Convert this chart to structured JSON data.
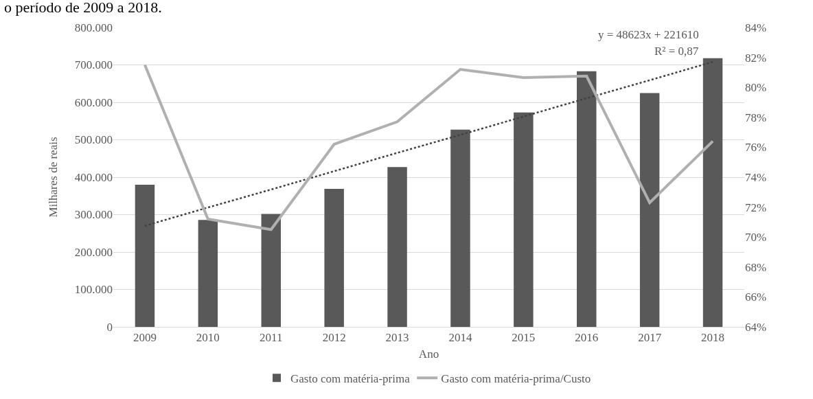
{
  "chart_data": {
    "type": "bar",
    "title": "o período de 2009 a 2018.",
    "xlabel": "Ano",
    "ylabel": "Milhares de reais",
    "categories": [
      "2009",
      "2010",
      "2011",
      "2012",
      "2013",
      "2014",
      "2015",
      "2016",
      "2017",
      "2018"
    ],
    "series": [
      {
        "name": "Gasto com matéria-prima",
        "color": "#595959",
        "values": [
          380000,
          286000,
          302000,
          369000,
          427000,
          527000,
          573000,
          683000,
          625000,
          718000
        ]
      },
      {
        "name": "Gasto com matéria-prima/Custo",
        "type": "line",
        "axis": "y2",
        "color": "#b0b0b0",
        "values": [
          81.5,
          71.2,
          70.5,
          76.2,
          77.7,
          81.2,
          80.65,
          80.75,
          72.3,
          76.4
        ]
      },
      {
        "type": "line",
        "color": "#404040",
        "line_style": "dotted",
        "values": [
          270000,
          319000,
          367000,
          416000,
          465000,
          513000,
          562000,
          611000,
          659000,
          708000
        ]
      }
    ],
    "ylim": [
      0,
      800000
    ],
    "yticks": [
      {
        "value": 0,
        "label": "0"
      },
      {
        "value": 100000,
        "label": "100.000"
      },
      {
        "value": 200000,
        "label": "200.000"
      },
      {
        "value": 300000,
        "label": "300.000"
      },
      {
        "value": 400000,
        "label": "400.000"
      },
      {
        "value": 500000,
        "label": "500.000"
      },
      {
        "value": 600000,
        "label": "600.000"
      },
      {
        "value": 700000,
        "label": "700.000"
      },
      {
        "value": 800000,
        "label": "800.000"
      }
    ],
    "y2lim": [
      64,
      84
    ],
    "y2ticks": [
      {
        "value": 64,
        "label": "64%"
      },
      {
        "value": 66,
        "label": "66%"
      },
      {
        "value": 68,
        "label": "68%"
      },
      {
        "value": 70,
        "label": "70%"
      },
      {
        "value": 72,
        "label": "72%"
      },
      {
        "value": 74,
        "label": "74%"
      },
      {
        "value": 76,
        "label": "76%"
      },
      {
        "value": 78,
        "label": "78%"
      },
      {
        "value": 80,
        "label": "80%"
      },
      {
        "value": 82,
        "label": "82%"
      },
      {
        "value": 84,
        "label": "84%"
      }
    ],
    "annotations": [
      "y = 48623x + 221610",
      "R² = 0,87"
    ],
    "grid": "y",
    "legend": "bottom"
  }
}
